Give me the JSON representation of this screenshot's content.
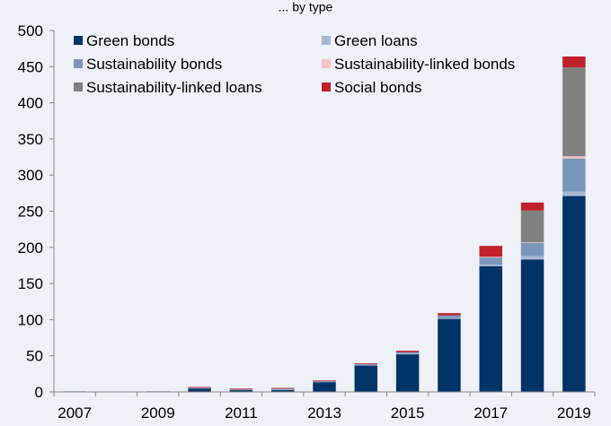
{
  "chart_data": {
    "type": "bar",
    "stacked": true,
    "title": "... by type",
    "xlabel": "",
    "ylabel": "",
    "categories": [
      "2007",
      "2008",
      "2009",
      "2010",
      "2011",
      "2012",
      "2013",
      "2014",
      "2015",
      "2016",
      "2017",
      "2018",
      "2019"
    ],
    "x_tick_labels": [
      "2007",
      "2009",
      "2011",
      "2013",
      "2015",
      "2017",
      "2019"
    ],
    "ylim": [
      0,
      500
    ],
    "y_ticks": [
      0,
      50,
      100,
      150,
      200,
      250,
      300,
      350,
      400,
      450,
      500
    ],
    "y_tick_labels": [
      "0",
      "50",
      "100",
      "150",
      "200",
      "250",
      "300",
      "350",
      "400",
      "450",
      "500"
    ],
    "grid": false,
    "legend_position": "top-left, inside plot, two columns",
    "series": [
      {
        "name": "Green bonds",
        "color": "#003366",
        "values": [
          0.8,
          0.5,
          0.8,
          5,
          3,
          3,
          14,
          37,
          52,
          101,
          174,
          183,
          271
        ]
      },
      {
        "name": "Green loans",
        "color": "#a6b8d4",
        "values": [
          0,
          0,
          0,
          0.5,
          0.3,
          0.5,
          0.3,
          0.5,
          1,
          1,
          2,
          5,
          6
        ]
      },
      {
        "name": "Sustainability bonds",
        "color": "#7b96bb",
        "values": [
          0,
          0,
          0,
          0.5,
          0.5,
          1,
          0.5,
          1,
          2,
          4,
          10,
          18,
          46
        ]
      },
      {
        "name": "Sustainability-linked bonds",
        "color": "#f4c4c8",
        "values": [
          0,
          0,
          0,
          0,
          0,
          0,
          0,
          0,
          0,
          0,
          1,
          1,
          3
        ]
      },
      {
        "name": "Sustainability-linked loans",
        "color": "#808080",
        "values": [
          0,
          0,
          0,
          0,
          0,
          0,
          0,
          0,
          0,
          0,
          0,
          44,
          123
        ]
      },
      {
        "name": "Social bonds",
        "color": "#c0202a",
        "values": [
          0,
          0,
          0,
          0.8,
          0.8,
          1,
          1,
          1,
          2,
          3,
          15,
          11,
          15
        ]
      }
    ]
  }
}
